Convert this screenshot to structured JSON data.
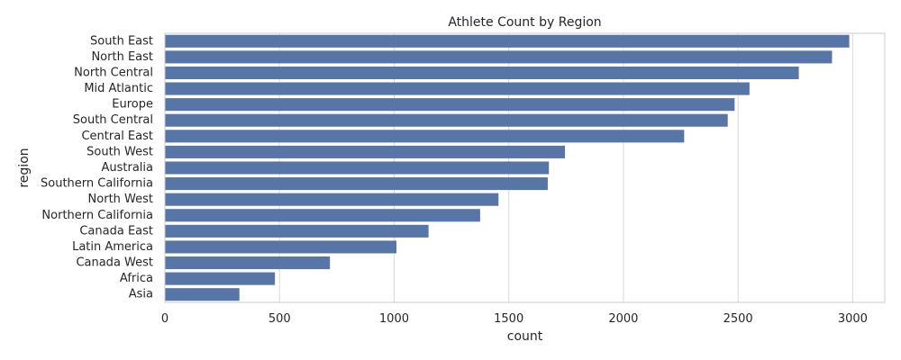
{
  "chart_data": {
    "type": "bar",
    "orientation": "horizontal",
    "title": "Athlete Count by Region",
    "xlabel": "count",
    "ylabel": "region",
    "categories": [
      "South East",
      "North East",
      "North Central",
      "Mid Atlantic",
      "Europe",
      "South Central",
      "Central East",
      "South West",
      "Australia",
      "Southern California",
      "North West",
      "Northern California",
      "Canada East",
      "Latin America",
      "Canada West",
      "Africa",
      "Asia"
    ],
    "values": [
      2985,
      2910,
      2765,
      2550,
      2485,
      2455,
      2265,
      1745,
      1675,
      1670,
      1455,
      1375,
      1150,
      1010,
      720,
      480,
      325
    ],
    "xlim": [
      0,
      3140
    ],
    "xticks": [
      0,
      500,
      1000,
      1500,
      2000,
      2500,
      3000
    ],
    "grid": true,
    "colors": {
      "bar": "#5875a8",
      "grid": "#d9d9d9",
      "axis_frame": "#cccccc",
      "text": "#262626"
    }
  }
}
